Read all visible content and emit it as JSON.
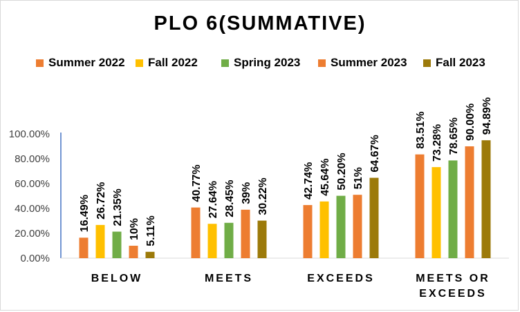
{
  "chart_data": {
    "type": "bar",
    "title": "PLO 6(SUMMATIVE)",
    "categories": [
      "BELOW",
      "MEETS",
      "EXCEEDS",
      "MEETS OR EXCEEDS"
    ],
    "series": [
      {
        "name": "Summer 2022",
        "color": "#ED7D31",
        "values": [
          16.49,
          40.77,
          42.74,
          83.51
        ],
        "labels": [
          "16.49%",
          "40.77%",
          "42.74%",
          "83.51%"
        ]
      },
      {
        "name": "Fall 2022",
        "color": "#FFC000",
        "values": [
          26.72,
          27.64,
          45.64,
          73.28
        ],
        "labels": [
          "26.72%",
          "27.64%",
          "45.64%",
          "73.28%"
        ]
      },
      {
        "name": "Spring 2023",
        "color": "#70AD47",
        "values": [
          21.35,
          28.45,
          50.2,
          78.65
        ],
        "labels": [
          "21.35%",
          "28.45%",
          "50.20%",
          "78.65%"
        ]
      },
      {
        "name": "Summer 2023",
        "color": "#ED7D31",
        "values": [
          10,
          39,
          51,
          90.0
        ],
        "labels": [
          "10%",
          "39%",
          "51%",
          "90.00%"
        ]
      },
      {
        "name": "Fall 2023",
        "color": "#9C7A0A",
        "values": [
          5.11,
          30.22,
          64.67,
          94.89
        ],
        "labels": [
          "5.11%",
          "30.22%",
          "64.67%",
          "94.89%"
        ]
      }
    ],
    "ylim": [
      0,
      100
    ],
    "yticks": [
      0,
      20,
      40,
      60,
      80,
      100
    ],
    "ytick_labels": [
      "0.00%",
      "20.00%",
      "40.00%",
      "60.00%",
      "80.00%",
      "100.00%"
    ],
    "grid": false,
    "legend_position": "top"
  }
}
